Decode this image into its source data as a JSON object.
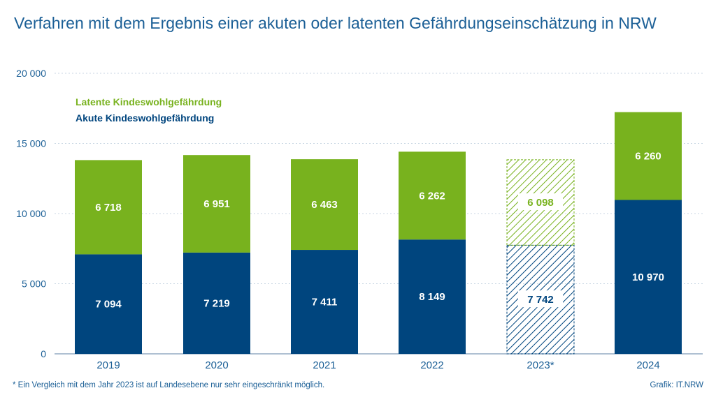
{
  "title": "Verfahren mit dem Ergebnis einer akuten oder latenten Gefährdungseinschätzung in NRW",
  "footnote": "*  Ein Vergleich mit dem Jahr 2023 ist auf Landesebene nur sehr eingeschränkt möglich.",
  "source": "Grafik: IT.NRW",
  "colors": {
    "latent": "#78b21e",
    "acute": "#00457e",
    "text": "#1b5f96",
    "grid": "#c8d6e3"
  },
  "chart_data": {
    "type": "bar",
    "stacked": true,
    "categories": [
      "2019",
      "2020",
      "2021",
      "2022",
      "2023*",
      "2024"
    ],
    "series": [
      {
        "name": "Akute Kindeswohlgefährdung",
        "values": [
          7094,
          7219,
          7411,
          8149,
          7742,
          10970
        ]
      },
      {
        "name": "Latente Kindeswohlgefährdung",
        "values": [
          6718,
          6951,
          6463,
          6262,
          6098,
          6260
        ]
      }
    ],
    "value_labels": {
      "acute": [
        "7 094",
        "7 219",
        "7 411",
        "8 149",
        "7 742",
        "10 970"
      ],
      "latent": [
        "6 718",
        "6 951",
        "6 463",
        "6 262",
        "6 098",
        "6 260"
      ]
    },
    "hatched_categories": [
      "2023*"
    ],
    "yticks": [
      0,
      5000,
      10000,
      15000,
      20000
    ],
    "ytick_labels": [
      "0",
      "5 000",
      "10 000",
      "15 000",
      "20 000"
    ],
    "ylim": [
      0,
      20000
    ],
    "grid": true,
    "legend_position": "top-left"
  }
}
